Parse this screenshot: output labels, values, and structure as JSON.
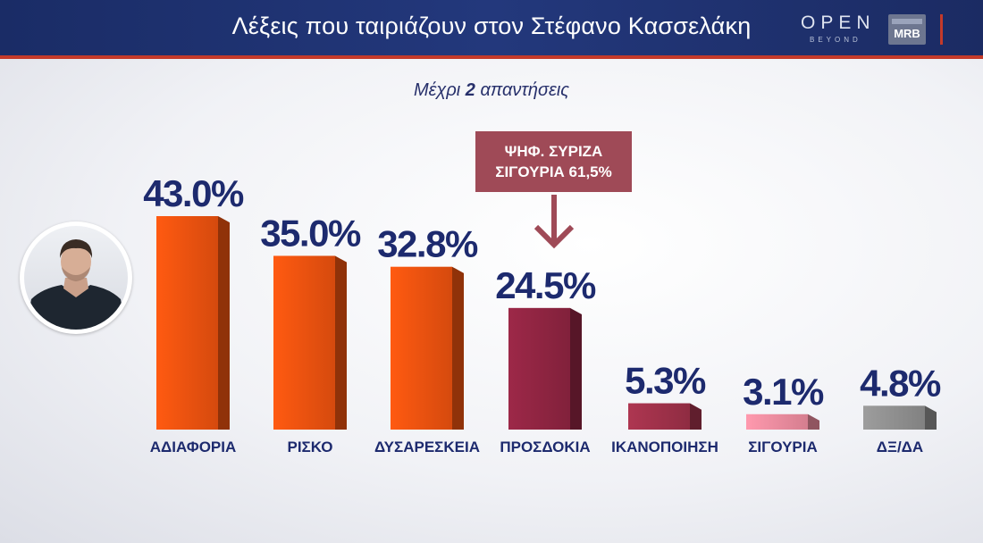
{
  "header": {
    "title": "Λέξεις που ταιριάζουν στον Στέφανο Κασσελάκη"
  },
  "logos": {
    "open": "OPEN",
    "beyond": "BEYOND",
    "mrb": "MRB"
  },
  "subtitle": {
    "pre": "Μέχρι ",
    "num": "2",
    "post": " απαντήσεις"
  },
  "callout": {
    "line1": "ΨΗΦ. ΣΥΡΙΖΑ",
    "line2": "ΣΙΓΟΥΡΙΑ 61,5%"
  },
  "avatar": {
    "label": "portrait-photo"
  },
  "colors": {
    "title_bg": "#1f3270",
    "accent_red": "#c43a2a",
    "text_navy": "#1d2a6e",
    "callout": "#9f4a57"
  },
  "chart_data": {
    "type": "bar",
    "categories": [
      "ΑΔΙΑΦΟΡΙΑ",
      "ΡΙΣΚΟ",
      "ΔΥΣΑΡΕΣΚΕΙΑ",
      "ΠΡΟΣΔΟΚΙΑ",
      "ΙΚΑΝΟΠΟΙΗΣΗ",
      "ΣΙΓΟΥΡΙΑ",
      "ΔΞ/ΔΑ"
    ],
    "values": [
      43.0,
      35.0,
      32.8,
      24.5,
      5.3,
      3.1,
      4.8
    ],
    "labels": [
      "43.0%",
      "35.0%",
      "32.8%",
      "24.5%",
      "5.3%",
      "3.1%",
      "4.8%"
    ],
    "colors": [
      "#e8500f",
      "#e8500f",
      "#e8500f",
      "#8c2440",
      "#9b3048",
      "#e8899b",
      "#8c8c8c"
    ],
    "ylim": [
      0,
      43.0
    ],
    "grid": false,
    "legend": "none"
  }
}
